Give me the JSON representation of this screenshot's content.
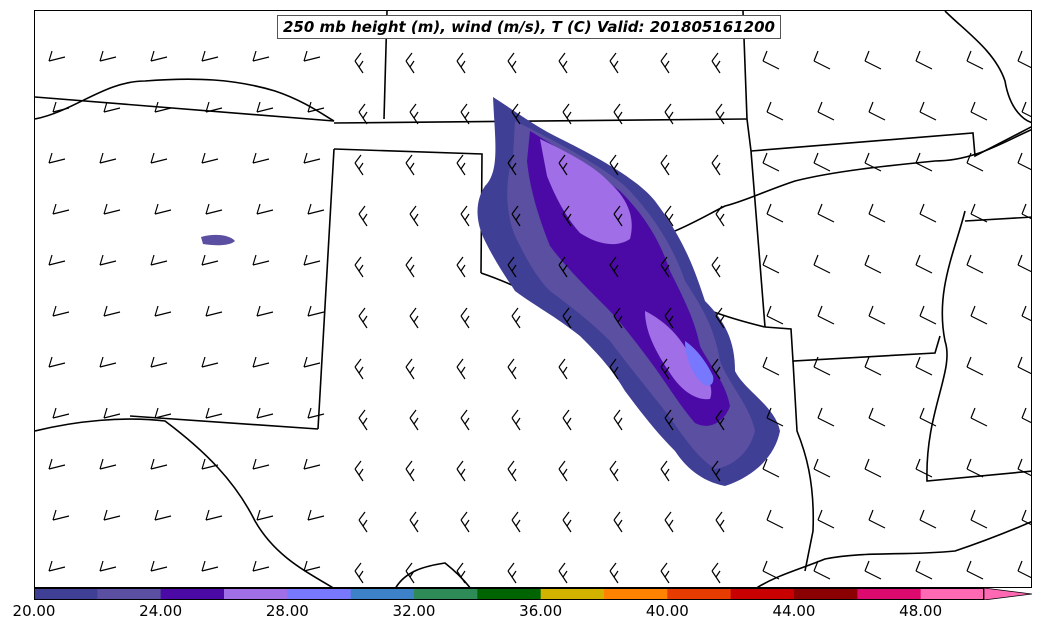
{
  "title": "250 mb height (m), wind (m/s), T (C) Valid: 201805161200",
  "colorbar": {
    "tick_labels": [
      "20.00",
      "24.00",
      "28.00",
      "32.00",
      "36.00",
      "40.00",
      "44.00",
      "48.00"
    ],
    "colors": [
      "#3f3f96",
      "#5a4fa0",
      "#4b0aa5",
      "#a06ee6",
      "#7878ff",
      "#3d82c8",
      "#2e8b57",
      "#006400",
      "#d2b400",
      "#ff8200",
      "#e63c00",
      "#c80000",
      "#8b0000",
      "#dc0a6e",
      "#ff69b4"
    ],
    "extend": "max"
  },
  "fill_colors": {
    "band_20_22": "#3f3f96",
    "band_22_24": "#5a4fa0",
    "band_24_26": "#4b0aa5",
    "band_26_28": "#a06ee6",
    "band_28_30": "#7878ff"
  }
}
